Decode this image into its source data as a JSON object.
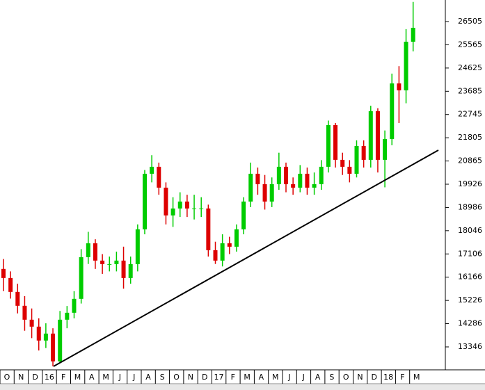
{
  "chart_data": {
    "type": "candlestick",
    "categories": [
      "O",
      null,
      "N",
      null,
      "D",
      null,
      "16",
      null,
      "F",
      null,
      "M",
      null,
      "A",
      null,
      "M",
      null,
      "J",
      null,
      "J",
      null,
      "A",
      null,
      "S",
      null,
      "O",
      null,
      "N",
      null,
      "D",
      null,
      "17",
      null,
      "F",
      null,
      "M",
      null,
      "A",
      null,
      "M",
      null,
      "J",
      null,
      "J",
      null,
      "A",
      null,
      "S",
      null,
      "O",
      null,
      "N",
      null,
      "D",
      null,
      "18",
      null,
      "F",
      null,
      "M"
    ],
    "open": [
      16500,
      16133,
      15571,
      15009,
      14446,
      14165,
      13603,
      13884,
      12760,
      14446,
      14727,
      15290,
      16976,
      17538,
      16836,
      16695,
      16695,
      16836,
      16133,
      16695,
      18101,
      20349,
      20631,
      19787,
      18663,
      18944,
      19225,
      18944,
      18944,
      18944,
      17257,
      16836,
      17538,
      17398,
      18101,
      19225,
      20349,
      19928,
      19225,
      19928,
      20631,
      19928,
      19787,
      20349,
      19787,
      19928,
      20631,
      22317,
      20912,
      20631,
      20349,
      21474,
      20912,
      22879,
      20912,
      21755,
      24004,
      23723,
      25690
    ],
    "high": [
      16900,
      16400,
      15900,
      15400,
      14900,
      14500,
      14300,
      14100,
      14800,
      15000,
      15600,
      17300,
      18000,
      17700,
      17100,
      17000,
      17200,
      17400,
      17000,
      18300,
      20500,
      21100,
      20800,
      20000,
      19400,
      19600,
      19500,
      19500,
      19400,
      19100,
      17600,
      17900,
      17800,
      18300,
      19400,
      20800,
      20600,
      20300,
      20200,
      21200,
      20800,
      20200,
      20700,
      20600,
      20400,
      20900,
      22500,
      22400,
      21200,
      20900,
      21700,
      21700,
      23100,
      23000,
      22100,
      24400,
      24700,
      26200,
      27300
    ],
    "low": [
      15600,
      15300,
      14700,
      14000,
      13700,
      13200,
      13300,
      12560,
      12700,
      14100,
      14500,
      15100,
      16700,
      16500,
      16300,
      16400,
      16400,
      15700,
      15900,
      16400,
      17900,
      20000,
      19500,
      18300,
      18200,
      18600,
      18600,
      18500,
      18600,
      17000,
      16700,
      16600,
      17100,
      17200,
      17900,
      19000,
      19500,
      18900,
      19000,
      19700,
      19600,
      19500,
      19600,
      19500,
      19500,
      19700,
      20400,
      20600,
      20300,
      20000,
      20200,
      20600,
      20600,
      20400,
      19800,
      21500,
      22400,
      23200,
      25300
    ],
    "close": [
      16133,
      15571,
      15009,
      14446,
      14165,
      13603,
      13884,
      12760,
      14446,
      14727,
      15290,
      16976,
      17538,
      16836,
      16695,
      16695,
      16836,
      16133,
      16695,
      18101,
      20349,
      20631,
      19787,
      18663,
      18944,
      19225,
      18944,
      18944,
      18944,
      17257,
      16836,
      17538,
      17398,
      18101,
      19225,
      20349,
      19928,
      19225,
      19928,
      20631,
      19928,
      19787,
      20349,
      19787,
      19928,
      20631,
      22317,
      20912,
      20631,
      20349,
      21474,
      20912,
      22879,
      20912,
      21755,
      24004,
      23723,
      25690,
      26253
    ],
    "up_color": "#00cc00",
    "down_color": "#dd0000",
    "trendline": [
      12559,
      21304
    ],
    "ylim": [
      12474,
      27377
    ],
    "yticks": [
      13346,
      14286,
      15226,
      16166,
      17106,
      18046,
      18986,
      19926,
      20865,
      21805,
      22745,
      23685,
      24625,
      25565,
      26505
    ]
  }
}
